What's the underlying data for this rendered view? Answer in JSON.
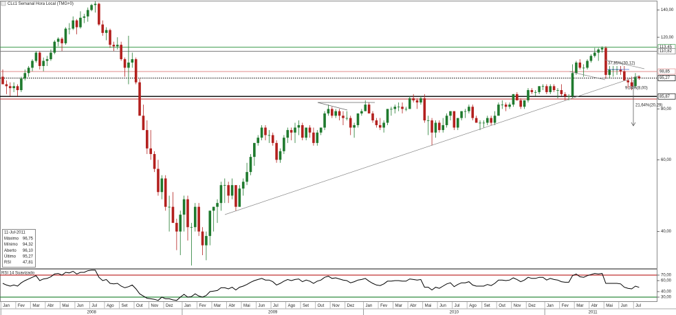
{
  "chart_data": {
    "type": "candlestick",
    "title": "CLc1 Semanal Hora Local (TMG+0)",
    "log_scale": true,
    "ylim": [
      32.5,
      147
    ],
    "yticks": [
      {
        "value": 140,
        "label": "140,00"
      },
      {
        "value": 120,
        "label": "120,00"
      },
      {
        "value": 80,
        "label": "80,00"
      },
      {
        "value": 60,
        "label": "60,00"
      },
      {
        "value": 40,
        "label": "40,00"
      }
    ],
    "up_color": "#1f7a2e",
    "down_color": "#b3201e",
    "levels": [
      {
        "value": 113.45,
        "label": "113,45",
        "color": "#3a9a4a"
      },
      {
        "value": 110.82,
        "label": "110,82",
        "color": "#777777"
      },
      {
        "value": 98.85,
        "label": "98,85",
        "color": "#e08a8a"
      },
      {
        "value": 95.27,
        "label": "95,27",
        "color": "#000000",
        "dashed": true
      },
      {
        "value": 85.87,
        "label": "85,87",
        "color": "#000000"
      },
      {
        "value": 84.6,
        "color": "#c03030"
      }
    ],
    "annotations": [
      "37,85%(30,12)",
      "9,34%(8,00)",
      "21,64%(20,29)"
    ],
    "xticks": [
      {
        "value": 0,
        "label": "Jan"
      },
      {
        "value": 4,
        "label": "Fev"
      },
      {
        "value": 8,
        "label": "Mar"
      },
      {
        "value": 12,
        "label": "Abr"
      },
      {
        "value": 16,
        "label": "Mai"
      },
      {
        "value": 20,
        "label": "Jun"
      },
      {
        "value": 24,
        "label": "Jul"
      },
      {
        "value": 28,
        "label": "Ago"
      },
      {
        "value": 32,
        "label": "Set"
      },
      {
        "value": 36,
        "label": "Out"
      },
      {
        "value": 40,
        "label": "Nov"
      },
      {
        "value": 44,
        "label": "Dez"
      },
      {
        "value": 49,
        "label": "Jan"
      },
      {
        "value": 53,
        "label": "Fev"
      },
      {
        "value": 57,
        "label": "Mar"
      },
      {
        "value": 61,
        "label": "Abr"
      },
      {
        "value": 65,
        "label": "Mai"
      },
      {
        "value": 69,
        "label": "Jun"
      },
      {
        "value": 73,
        "label": "Jul"
      },
      {
        "value": 77,
        "label": "Ago"
      },
      {
        "value": 81,
        "label": "Set"
      },
      {
        "value": 85,
        "label": "Out"
      },
      {
        "value": 89,
        "label": "Nov"
      },
      {
        "value": 93,
        "label": "Dez"
      },
      {
        "value": 98,
        "label": "Jan"
      },
      {
        "value": 102,
        "label": "Fev"
      },
      {
        "value": 106,
        "label": "Mar"
      },
      {
        "value": 110,
        "label": "Abr"
      },
      {
        "value": 114,
        "label": "Mai"
      },
      {
        "value": 118,
        "label": "Jun"
      },
      {
        "value": 122,
        "label": "Jul"
      },
      {
        "value": 126,
        "label": "Ago"
      },
      {
        "value": 130,
        "label": "Set"
      },
      {
        "value": 134,
        "label": "Out"
      },
      {
        "value": 138,
        "label": "Nov"
      },
      {
        "value": 142,
        "label": "Dez"
      },
      {
        "value": 147,
        "label": "Jan"
      },
      {
        "value": 151,
        "label": "Fev"
      },
      {
        "value": 155,
        "label": "Mar"
      },
      {
        "value": 159,
        "label": "Abr"
      },
      {
        "value": 163,
        "label": "Mai"
      },
      {
        "value": 167,
        "label": "Jun"
      },
      {
        "value": 171,
        "label": "Jul"
      }
    ],
    "years": [
      {
        "value": 0,
        "label": "2008"
      },
      {
        "value": 49,
        "label": "2009"
      },
      {
        "value": 98,
        "label": "2010"
      },
      {
        "value": 147,
        "label": "2011"
      }
    ],
    "ohlc": [
      [
        96,
        100,
        92,
        92
      ],
      [
        92,
        94,
        87,
        91
      ],
      [
        91,
        93,
        86,
        90
      ],
      [
        90,
        93,
        88,
        91
      ],
      [
        91,
        92,
        86,
        89
      ],
      [
        89,
        96,
        88,
        95
      ],
      [
        95,
        100,
        94,
        98
      ],
      [
        98,
        102,
        96,
        101
      ],
      [
        101,
        106,
        99,
        105
      ],
      [
        105,
        111,
        104,
        110
      ],
      [
        110,
        111,
        100,
        102
      ],
      [
        102,
        107,
        99,
        105
      ],
      [
        105,
        108,
        102,
        106
      ],
      [
        106,
        112,
        105,
        110
      ],
      [
        110,
        118,
        109,
        117
      ],
      [
        117,
        120,
        114,
        119
      ],
      [
        119,
        120,
        111,
        116
      ],
      [
        116,
        127,
        115,
        126
      ],
      [
        126,
        130,
        122,
        126
      ],
      [
        126,
        135,
        125,
        132
      ],
      [
        132,
        133,
        122,
        127
      ],
      [
        127,
        139,
        126,
        134
      ],
      [
        134,
        137,
        130,
        135
      ],
      [
        135,
        142,
        131,
        140
      ],
      [
        140,
        145,
        139,
        144
      ],
      [
        144,
        147,
        138,
        145
      ],
      [
        145,
        146,
        128,
        129
      ],
      [
        129,
        132,
        121,
        123
      ],
      [
        123,
        127,
        118,
        125
      ],
      [
        125,
        126,
        113,
        115
      ],
      [
        115,
        117,
        111,
        114
      ],
      [
        114,
        120,
        112,
        115
      ],
      [
        115,
        117,
        105,
        106
      ],
      [
        106,
        107,
        96,
        101
      ],
      [
        101,
        121,
        92,
        104
      ],
      [
        104,
        110,
        101,
        106
      ],
      [
        106,
        107,
        92,
        93
      ],
      [
        93,
        95,
        77,
        77
      ],
      [
        77,
        82,
        71,
        71
      ],
      [
        71,
        75,
        62,
        64
      ],
      [
        64,
        71,
        60,
        62
      ],
      [
        62,
        63,
        56,
        57
      ],
      [
        57,
        60,
        49,
        50
      ],
      [
        50,
        55,
        48,
        54
      ],
      [
        54,
        55,
        45,
        46
      ],
      [
        46,
        49,
        40,
        46
      ],
      [
        46,
        50,
        42,
        42
      ],
      [
        42,
        43,
        36,
        40
      ],
      [
        40,
        45,
        35,
        44
      ],
      [
        44,
        49,
        40,
        48
      ],
      [
        48,
        49,
        38,
        41
      ],
      [
        41,
        42,
        33,
        41
      ],
      [
        41,
        47,
        40,
        46
      ],
      [
        46,
        47,
        39,
        40
      ],
      [
        40,
        41,
        35,
        37
      ],
      [
        37,
        40,
        34,
        39
      ],
      [
        39,
        45,
        37,
        45
      ],
      [
        45,
        46,
        40,
        46
      ],
      [
        46,
        48,
        42,
        47
      ],
      [
        47,
        53,
        45,
        52
      ],
      [
        52,
        54,
        47,
        52
      ],
      [
        52,
        53,
        47,
        49
      ],
      [
        49,
        54,
        48,
        52
      ],
      [
        52,
        52,
        45,
        46
      ],
      [
        46,
        52,
        46,
        51
      ],
      [
        51,
        54,
        49,
        53
      ],
      [
        53,
        59,
        52,
        56
      ],
      [
        56,
        62,
        55,
        61
      ],
      [
        61,
        66,
        58,
        66
      ],
      [
        66,
        69,
        65,
        68
      ],
      [
        68,
        73,
        67,
        72
      ],
      [
        72,
        73,
        67,
        69
      ],
      [
        69,
        71,
        66,
        69
      ],
      [
        69,
        70,
        65,
        66
      ],
      [
        66,
        67,
        59,
        60
      ],
      [
        60,
        64,
        59,
        63
      ],
      [
        63,
        69,
        62,
        68
      ],
      [
        68,
        72,
        66,
        71
      ],
      [
        71,
        72,
        67,
        70
      ],
      [
        70,
        74,
        66,
        72
      ],
      [
        72,
        75,
        69,
        73
      ],
      [
        73,
        74,
        67,
        68
      ],
      [
        68,
        72,
        67,
        72
      ],
      [
        72,
        73,
        68,
        70
      ],
      [
        70,
        72,
        65,
        66
      ],
      [
        66,
        71,
        65,
        70
      ],
      [
        70,
        72,
        69,
        72
      ],
      [
        72,
        79,
        71,
        78
      ],
      [
        78,
        82,
        77,
        80
      ],
      [
        80,
        81,
        76,
        77
      ],
      [
        77,
        80,
        76,
        79
      ],
      [
        79,
        80,
        75,
        77
      ],
      [
        77,
        79,
        73,
        76
      ],
      [
        76,
        79,
        75,
        76
      ],
      [
        76,
        77,
        69,
        72
      ],
      [
        72,
        74,
        68,
        73
      ],
      [
        73,
        78,
        72,
        78
      ],
      [
        78,
        80,
        77,
        79
      ],
      [
        79,
        84,
        79,
        82
      ],
      [
        82,
        83,
        78,
        78
      ],
      [
        78,
        79,
        74,
        75
      ],
      [
        75,
        76,
        72,
        73
      ],
      [
        73,
        76,
        71,
        72
      ],
      [
        72,
        75,
        70,
        74
      ],
      [
        74,
        80,
        73,
        80
      ],
      [
        80,
        81,
        77,
        80
      ],
      [
        80,
        82,
        78,
        81
      ],
      [
        81,
        83,
        79,
        81
      ],
      [
        81,
        83,
        78,
        80
      ],
      [
        80,
        81,
        79,
        80
      ],
      [
        80,
        86,
        80,
        85
      ],
      [
        85,
        87,
        83,
        84
      ],
      [
        84,
        85,
        80,
        83
      ],
      [
        83,
        86,
        82,
        85
      ],
      [
        85,
        87,
        74,
        75
      ],
      [
        75,
        77,
        69,
        75
      ],
      [
        75,
        76,
        65,
        70
      ],
      [
        70,
        75,
        68,
        74
      ],
      [
        74,
        75,
        70,
        71
      ],
      [
        71,
        76,
        70,
        73
      ],
      [
        73,
        78,
        72,
        77
      ],
      [
        77,
        79,
        75,
        79
      ],
      [
        79,
        79,
        71,
        72
      ],
      [
        72,
        76,
        71,
        76
      ],
      [
        76,
        79,
        75,
        79
      ],
      [
        79,
        80,
        76,
        79
      ],
      [
        79,
        82,
        78,
        81
      ],
      [
        81,
        82,
        75,
        76
      ],
      [
        76,
        77,
        74,
        74
      ],
      [
        74,
        75,
        71,
        74
      ],
      [
        74,
        75,
        72,
        74
      ],
      [
        74,
        77,
        73,
        76
      ],
      [
        76,
        77,
        73,
        74
      ],
      [
        74,
        79,
        73,
        77
      ],
      [
        77,
        83,
        77,
        82
      ],
      [
        82,
        84,
        80,
        82
      ],
      [
        82,
        83,
        79,
        81
      ],
      [
        81,
        83,
        80,
        82
      ],
      [
        82,
        87,
        81,
        87
      ],
      [
        87,
        88,
        84,
        84
      ],
      [
        84,
        85,
        80,
        81
      ],
      [
        81,
        84,
        80,
        84
      ],
      [
        84,
        90,
        83,
        89
      ],
      [
        89,
        90,
        87,
        88
      ],
      [
        88,
        89,
        86,
        88
      ],
      [
        88,
        91,
        87,
        91
      ],
      [
        91,
        92,
        89,
        91
      ],
      [
        91,
        92,
        87,
        88
      ],
      [
        88,
        92,
        87,
        91
      ],
      [
        91,
        92,
        88,
        89
      ],
      [
        89,
        90,
        85,
        89
      ],
      [
        89,
        92,
        86,
        87
      ],
      [
        87,
        88,
        84,
        86
      ],
      [
        86,
        87,
        84,
        86
      ],
      [
        86,
        103,
        85,
        98
      ],
      [
        98,
        105,
        97,
        104
      ],
      [
        104,
        106,
        100,
        101
      ],
      [
        101,
        103,
        96,
        101
      ],
      [
        101,
        106,
        100,
        105
      ],
      [
        105,
        109,
        104,
        108
      ],
      [
        108,
        113,
        107,
        110
      ],
      [
        110,
        113,
        105,
        112
      ],
      [
        112,
        114,
        110,
        113
      ],
      [
        113,
        114,
        95,
        97
      ],
      [
        97,
        102,
        95,
        100
      ],
      [
        100,
        102,
        96,
        100
      ],
      [
        100,
        102,
        97,
        100
      ],
      [
        100,
        102,
        97,
        99
      ],
      [
        99,
        102,
        95,
        94
      ],
      [
        94,
        95,
        90,
        93
      ],
      [
        93,
        96,
        89,
        91
      ],
      [
        91,
        98,
        90,
        96
      ],
      [
        96.1,
        96.75,
        94.32,
        95.27
      ]
    ],
    "rsi": {
      "name": "RSI 14 Suavizado",
      "color": "#000000",
      "ylim": [
        20,
        80
      ],
      "yticks": [
        {
          "value": 70,
          "label": "70,00"
        },
        {
          "value": 60,
          "label": "60,00"
        },
        {
          "value": 40,
          "label": "40,00"
        },
        {
          "value": 30,
          "label": "30,00"
        }
      ],
      "levels": [
        {
          "value": 70,
          "color": "#c03030"
        },
        {
          "value": 30,
          "color": "#2e8b3e"
        }
      ],
      "values": [
        55,
        52,
        50,
        52,
        50,
        56,
        60,
        63,
        66,
        69,
        60,
        63,
        64,
        67,
        72,
        73,
        70,
        75,
        74,
        77,
        72,
        75,
        75,
        78,
        79,
        79,
        66,
        60,
        62,
        55,
        54,
        55,
        50,
        47,
        49,
        52,
        45,
        36,
        32,
        28,
        27,
        26,
        24,
        30,
        27,
        27,
        25,
        24,
        30,
        35,
        30,
        31,
        36,
        32,
        30,
        33,
        40,
        41,
        42,
        47,
        47,
        45,
        48,
        43,
        48,
        50,
        53,
        57,
        60,
        62,
        64,
        61,
        61,
        58,
        52,
        55,
        59,
        62,
        60,
        62,
        63,
        58,
        61,
        59,
        55,
        59,
        61,
        66,
        68,
        64,
        65,
        63,
        61,
        60,
        56,
        58,
        61,
        62,
        64,
        59,
        55,
        52,
        51,
        54,
        59,
        59,
        60,
        60,
        59,
        59,
        63,
        62,
        61,
        62,
        48,
        48,
        43,
        48,
        46,
        50,
        54,
        56,
        49,
        53,
        56,
        56,
        58,
        52,
        50,
        50,
        50,
        53,
        51,
        55,
        61,
        61,
        60,
        61,
        65,
        62,
        58,
        61,
        66,
        64,
        64,
        66,
        66,
        61,
        64,
        62,
        61,
        58,
        57,
        57,
        69,
        72,
        67,
        66,
        69,
        71,
        73,
        72,
        73,
        55,
        55,
        55,
        55,
        54,
        48,
        46,
        45,
        50,
        47.81
      ]
    }
  },
  "info": {
    "date": "11-Jul-2011",
    "rows": [
      [
        "Máximo",
        "96,75"
      ],
      [
        "Mínimo",
        "94,32"
      ],
      [
        "Aberto",
        "96,10"
      ],
      [
        "Último",
        "95,27"
      ],
      [
        "RSI",
        "47,81"
      ]
    ]
  }
}
